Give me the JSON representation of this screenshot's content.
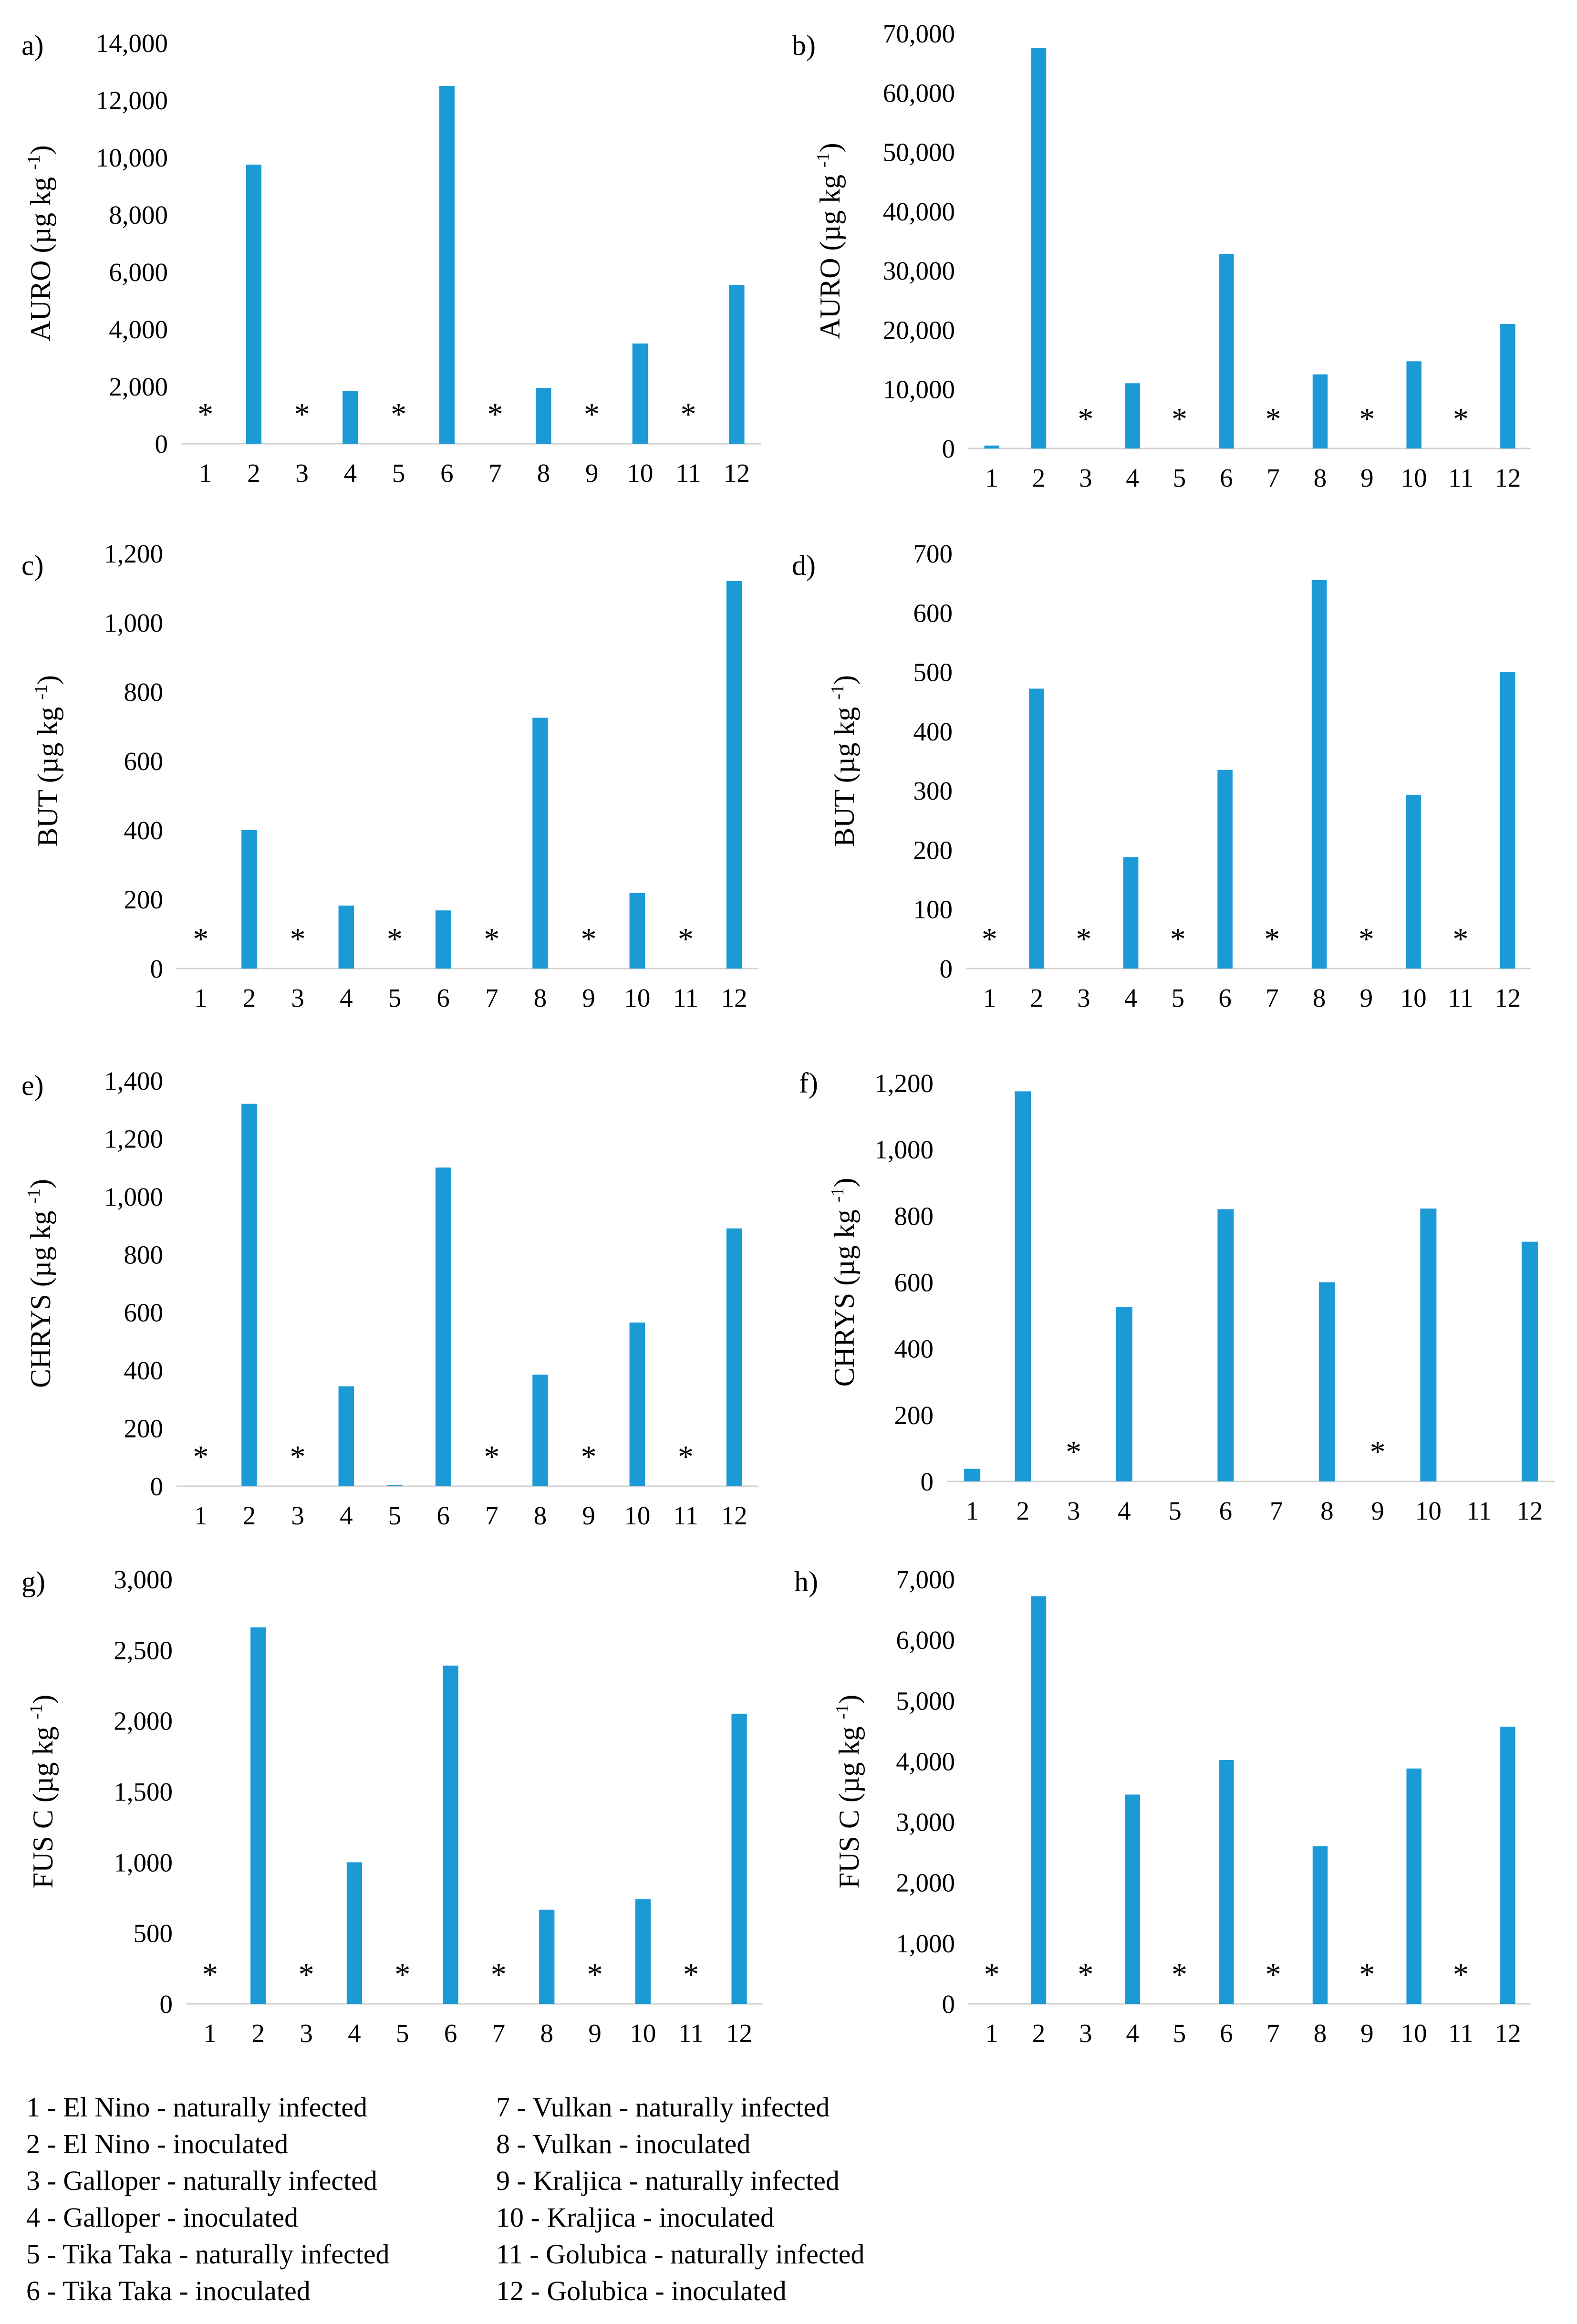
{
  "colors": {
    "bar": "#1c9ad6",
    "axis": "#d0d0d0",
    "text": "#000000"
  },
  "chart_data": [
    {
      "id": "a",
      "panel_label": "a)",
      "type": "bar",
      "ylabel_main": "AURO (µg kg",
      "ylabel_sup": "-1",
      "ylabel_end": ")",
      "ylim": [
        0,
        14000
      ],
      "yticks": [
        "0",
        "2,000",
        "4,000",
        "6,000",
        "8,000",
        "10,000",
        "12,000",
        "14,000"
      ],
      "categories": [
        "1",
        "2",
        "3",
        "4",
        "5",
        "6",
        "7",
        "8",
        "9",
        "10",
        "11",
        "12"
      ],
      "values": [
        0,
        9750,
        0,
        1850,
        0,
        12500,
        0,
        1950,
        0,
        3500,
        0,
        5550
      ],
      "not_detected": [
        1,
        3,
        5,
        7,
        9,
        11
      ],
      "marker": "*",
      "xlabel": ""
    },
    {
      "id": "b",
      "panel_label": "b)",
      "type": "bar",
      "ylabel_main": "AURO (µg kg",
      "ylabel_sup": "-1",
      "ylabel_end": ")",
      "ylim": [
        0,
        70000
      ],
      "yticks": [
        "0",
        "10,000",
        "20,000",
        "30,000",
        "40,000",
        "50,000",
        "60,000",
        "70,000"
      ],
      "categories": [
        "1",
        "2",
        "3",
        "4",
        "5",
        "6",
        "7",
        "8",
        "9",
        "10",
        "11",
        "12"
      ],
      "values": [
        500,
        67500,
        0,
        11000,
        0,
        32800,
        0,
        12500,
        0,
        14700,
        0,
        21000
      ],
      "not_detected": [
        3,
        5,
        7,
        9,
        11
      ],
      "marker": "*",
      "xlabel": ""
    },
    {
      "id": "c",
      "panel_label": "c)",
      "type": "bar",
      "ylabel_main": "BUT (µg kg",
      "ylabel_sup": "-1",
      "ylabel_end": ")",
      "ylim": [
        0,
        1200
      ],
      "yticks": [
        "0",
        "200",
        "400",
        "600",
        "800",
        "1,000",
        "1,200"
      ],
      "categories": [
        "1",
        "2",
        "3",
        "4",
        "5",
        "6",
        "7",
        "8",
        "9",
        "10",
        "11",
        "12"
      ],
      "values": [
        0,
        400,
        0,
        182,
        0,
        168,
        0,
        725,
        0,
        218,
        0,
        1120
      ],
      "not_detected": [
        1,
        3,
        5,
        7,
        9,
        11
      ],
      "marker": "*",
      "xlabel": ""
    },
    {
      "id": "d",
      "panel_label": "d)",
      "type": "bar",
      "ylabel_main": "BUT (µg kg",
      "ylabel_sup": "-1",
      "ylabel_end": ")",
      "ylim": [
        0,
        700
      ],
      "yticks": [
        "0",
        "100",
        "200",
        "300",
        "400",
        "500",
        "600",
        "700"
      ],
      "categories": [
        "1",
        "2",
        "3",
        "4",
        "5",
        "6",
        "7",
        "8",
        "9",
        "10",
        "11",
        "12"
      ],
      "values": [
        0,
        472,
        0,
        188,
        0,
        335,
        0,
        655,
        0,
        293,
        0,
        500
      ],
      "not_detected": [
        1,
        3,
        5,
        7,
        9,
        11
      ],
      "marker": "*",
      "xlabel": ""
    },
    {
      "id": "e",
      "panel_label": "e)",
      "type": "bar",
      "ylabel_main": "CHRYS (µg kg",
      "ylabel_sup": "-1",
      "ylabel_end": ")",
      "ylim": [
        0,
        1400
      ],
      "yticks": [
        "0",
        "200",
        "400",
        "600",
        "800",
        "1,000",
        "1,200",
        "1,400"
      ],
      "categories": [
        "1",
        "2",
        "3",
        "4",
        "5",
        "6",
        "7",
        "8",
        "9",
        "10",
        "11",
        "12"
      ],
      "values": [
        0,
        1320,
        0,
        345,
        5,
        1100,
        0,
        385,
        0,
        565,
        0,
        890
      ],
      "not_detected": [
        1,
        3,
        7,
        9,
        11
      ],
      "marker": "*",
      "xlabel": ""
    },
    {
      "id": "f",
      "panel_label": "f)",
      "type": "bar",
      "ylabel_main": "CHRYS (µg kg",
      "ylabel_sup": "-1",
      "ylabel_end": ")",
      "ylim": [
        0,
        1200
      ],
      "yticks": [
        "0",
        "200",
        "400",
        "600",
        "800",
        "1,000",
        "1,200"
      ],
      "categories": [
        "1",
        "2",
        "3",
        "4",
        "5",
        "6",
        "7",
        "8",
        "9",
        "10",
        "11",
        "12"
      ],
      "values": [
        38,
        1175,
        0,
        525,
        0,
        820,
        0,
        600,
        0,
        822,
        0,
        722
      ],
      "not_detected": [
        3,
        9
      ],
      "marker": "*",
      "xlabel": ""
    },
    {
      "id": "g",
      "panel_label": "g)",
      "type": "bar",
      "ylabel_main": "FUS C (µg kg",
      "ylabel_sup": "-1",
      "ylabel_end": ")",
      "ylim": [
        0,
        3000
      ],
      "yticks": [
        "0",
        "500",
        "1,000",
        "1,500",
        "2,000",
        "2,500",
        "3,000"
      ],
      "categories": [
        "1",
        "2",
        "3",
        "4",
        "5",
        "6",
        "7",
        "8",
        "9",
        "10",
        "11",
        "12"
      ],
      "values": [
        0,
        2660,
        0,
        1000,
        0,
        2390,
        0,
        665,
        0,
        740,
        0,
        2050
      ],
      "not_detected": [
        1,
        3,
        5,
        7,
        9,
        11
      ],
      "marker": "*",
      "xlabel": ""
    },
    {
      "id": "h",
      "panel_label": "h)",
      "type": "bar",
      "ylabel_main": "FUS C (µg kg",
      "ylabel_sup": "-1",
      "ylabel_end": ")",
      "ylim": [
        0,
        7000
      ],
      "yticks": [
        "0",
        "1,000",
        "2,000",
        "3,000",
        "4,000",
        "5,000",
        "6,000",
        "7,000"
      ],
      "categories": [
        "1",
        "2",
        "3",
        "4",
        "5",
        "6",
        "7",
        "8",
        "9",
        "10",
        "11",
        "12"
      ],
      "values": [
        0,
        6720,
        0,
        3450,
        0,
        4020,
        0,
        2600,
        0,
        3880,
        0,
        4570
      ],
      "not_detected": [
        1,
        3,
        5,
        7,
        9,
        11
      ],
      "marker": "*",
      "xlabel": ""
    }
  ],
  "legend": {
    "left": [
      "1 - El Nino  - naturally infected",
      "2 - El Nino - inoculated",
      "3 - Galloper - naturally infected",
      "4 - Galloper - inoculated",
      "5 - Tika Taka - naturally infected",
      "6 - Tika Taka - inoculated"
    ],
    "right": [
      "7 - Vulkan - naturally infected",
      "8 - Vulkan - inoculated",
      "9 - Kraljica - naturally infected",
      "10 - Kraljica - inoculated",
      "11 - Golubica - naturally infected",
      "12 - Golubica - inoculated"
    ]
  }
}
